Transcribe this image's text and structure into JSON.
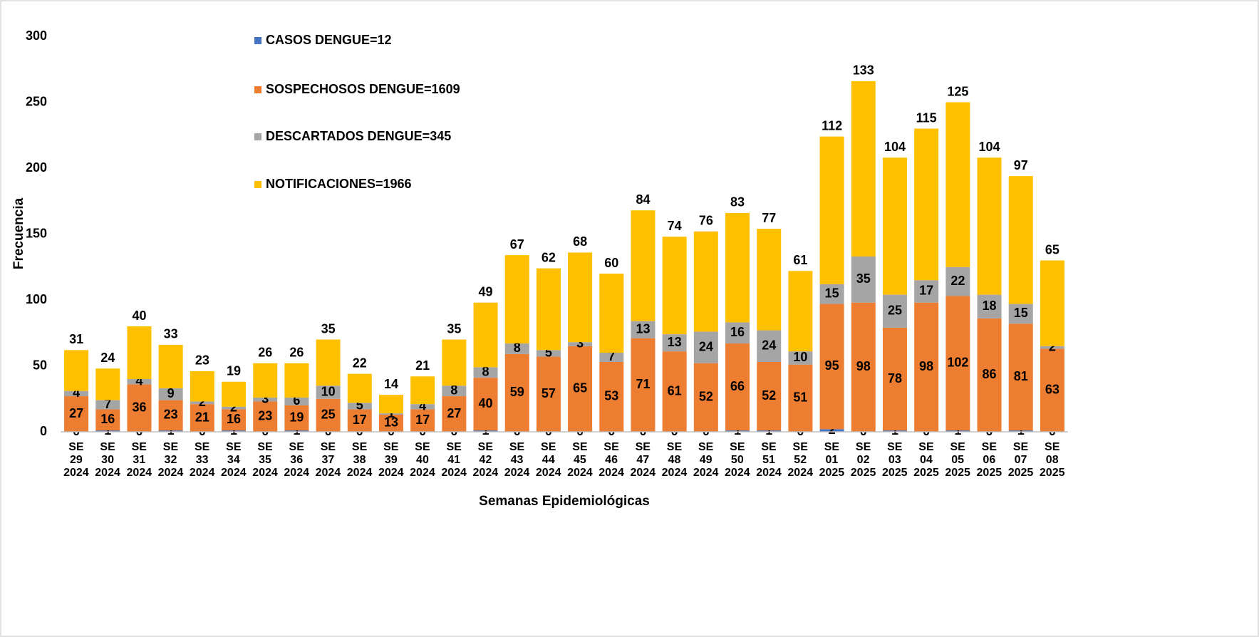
{
  "chart_data": {
    "type": "stacked_bar",
    "ylabel": "Frecuencia",
    "xlabel": "Semanas Epidemiológicas",
    "categories": [
      "SE 29 2024",
      "SE 30 2024",
      "SE 31 2024",
      "SE 32 2024",
      "SE 33 2024",
      "SE 34 2024",
      "SE 35 2024",
      "SE 36 2024",
      "SE 37 2024",
      "SE 38 2024",
      "SE 39 2024",
      "SE 40 2024",
      "SE 41 2024",
      "SE 42 2024",
      "SE 43 2024",
      "SE 44 2024",
      "SE 45 2024",
      "SE 46 2024",
      "SE 47 2024",
      "SE 48 2024",
      "SE 49 2024",
      "SE 50 2024",
      "SE 51 2024",
      "SE 52 2024",
      "SE 01 2025",
      "SE 02 2025",
      "SE 03 2025",
      "SE 04 2025",
      "SE 05 2025",
      "SE 06 2025",
      "SE 07 2025",
      "SE 08 2025"
    ],
    "series": [
      {
        "name": "CASOS DENGUE=12",
        "color": "#4472c4",
        "values": [
          0,
          1,
          0,
          1,
          0,
          1,
          0,
          1,
          0,
          0,
          0,
          0,
          0,
          1,
          0,
          0,
          0,
          0,
          0,
          0,
          0,
          1,
          1,
          0,
          2,
          0,
          1,
          0,
          1,
          0,
          1,
          0
        ]
      },
      {
        "name": "SOSPECHOSOS DENGUE=1609",
        "color": "#ed7d31",
        "values": [
          27,
          16,
          36,
          23,
          21,
          16,
          23,
          19,
          25,
          17,
          13,
          17,
          27,
          40,
          59,
          57,
          65,
          53,
          71,
          61,
          52,
          66,
          52,
          51,
          95,
          98,
          78,
          98,
          102,
          86,
          81,
          63
        ]
      },
      {
        "name": "DESCARTADOS DENGUE=345",
        "color": "#a5a5a5",
        "values": [
          4,
          7,
          4,
          9,
          2,
          2,
          3,
          6,
          10,
          5,
          1,
          4,
          8,
          8,
          8,
          5,
          3,
          7,
          13,
          13,
          24,
          16,
          24,
          10,
          15,
          35,
          25,
          17,
          22,
          18,
          15,
          2
        ]
      },
      {
        "name": "NOTIFICACIONES=1966",
        "color": "#ffc000",
        "values": [
          31,
          24,
          40,
          33,
          23,
          19,
          26,
          26,
          35,
          22,
          14,
          21,
          35,
          49,
          67,
          62,
          68,
          60,
          84,
          74,
          76,
          83,
          77,
          61,
          112,
          133,
          104,
          115,
          125,
          104,
          97,
          65
        ]
      }
    ],
    "ylim": [
      0,
      300
    ],
    "yticks": [
      0,
      50,
      100,
      150,
      200,
      250,
      300
    ],
    "grid": false,
    "legend": "top-left"
  }
}
